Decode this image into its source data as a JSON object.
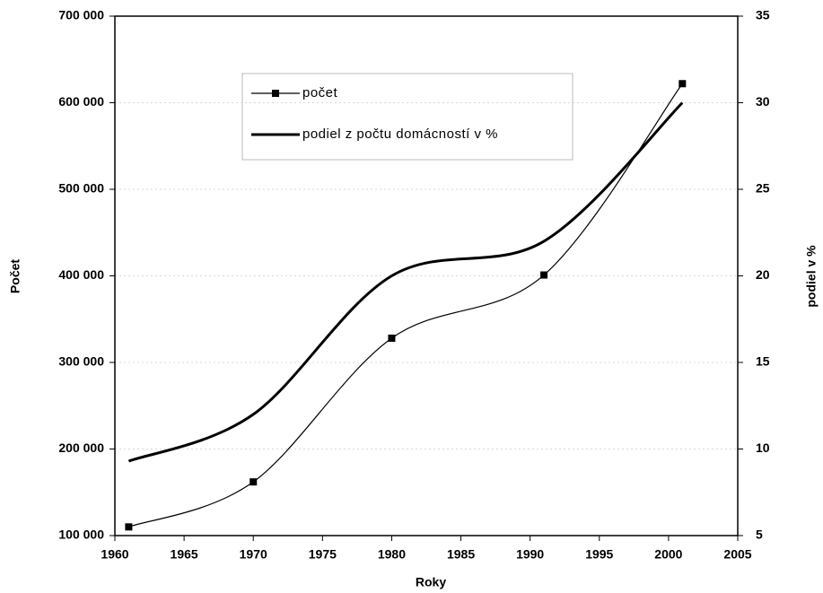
{
  "chart_data": {
    "type": "line",
    "x": [
      1961,
      1970,
      1980,
      1991,
      2001
    ],
    "series": [
      {
        "name": "počet",
        "color": "#000000",
        "markers": true,
        "values": [
          110000,
          162000,
          328000,
          401000,
          622000
        ]
      },
      {
        "name": "podiel z počtu domácností v %",
        "color": "#000000",
        "axis": "y2",
        "values": [
          9.3,
          12,
          20,
          22,
          30
        ]
      }
    ],
    "xlabel": "Roky",
    "ylabel": "Počet",
    "y2label": "podiel v %",
    "xlim": [
      1960,
      2005
    ],
    "xticks": [
      1960,
      1965,
      1970,
      1975,
      1980,
      1985,
      1990,
      1995,
      2000,
      2005
    ],
    "ylim": [
      100000,
      700000
    ],
    "yticks": [
      {
        "value": 100000,
        "label": "100 000"
      },
      {
        "value": 200000,
        "label": "200 000"
      },
      {
        "value": 300000,
        "label": "300 000"
      },
      {
        "value": 400000,
        "label": "400 000"
      },
      {
        "value": 500000,
        "label": "500 000"
      },
      {
        "value": 600000,
        "label": "600 000"
      },
      {
        "value": 700000,
        "label": "700 000"
      }
    ],
    "y2lim": [
      5,
      35
    ],
    "y2ticks": [
      5,
      10,
      15,
      20,
      25,
      30,
      35
    ],
    "grid": true,
    "legend": "upper-left"
  }
}
